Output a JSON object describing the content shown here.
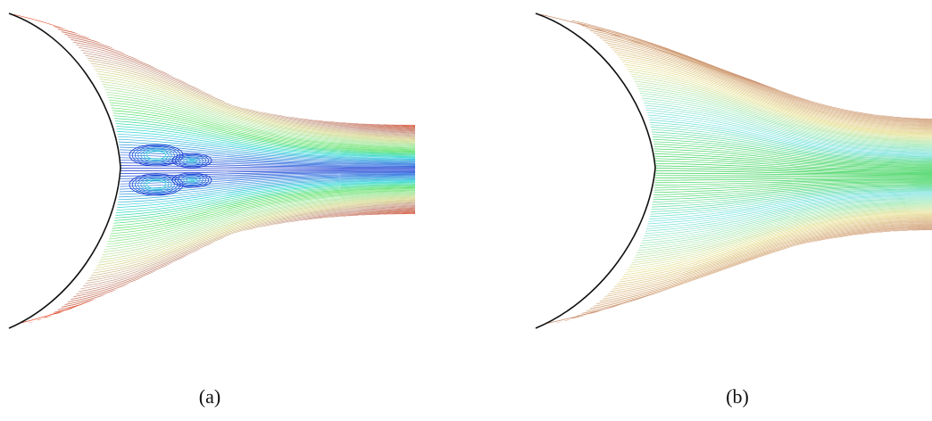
{
  "figure": {
    "panels": [
      {
        "id": "a",
        "caption": "(a)",
        "wall_color": "#111111",
        "color_scale": [
          "#e8401c",
          "#c8644c",
          "#c89c8c",
          "#d8d88c",
          "#a8e8a0",
          "#50e060",
          "#30d8d8",
          "#3080e0",
          "#1030d0"
        ]
      },
      {
        "id": "b",
        "caption": "(b)",
        "wall_color": "#111111",
        "color_scale": [
          "#c88a6a",
          "#d8b080",
          "#e8e090",
          "#9ee8b0",
          "#70e0e0",
          "#50d870",
          "#30d050"
        ]
      }
    ]
  }
}
